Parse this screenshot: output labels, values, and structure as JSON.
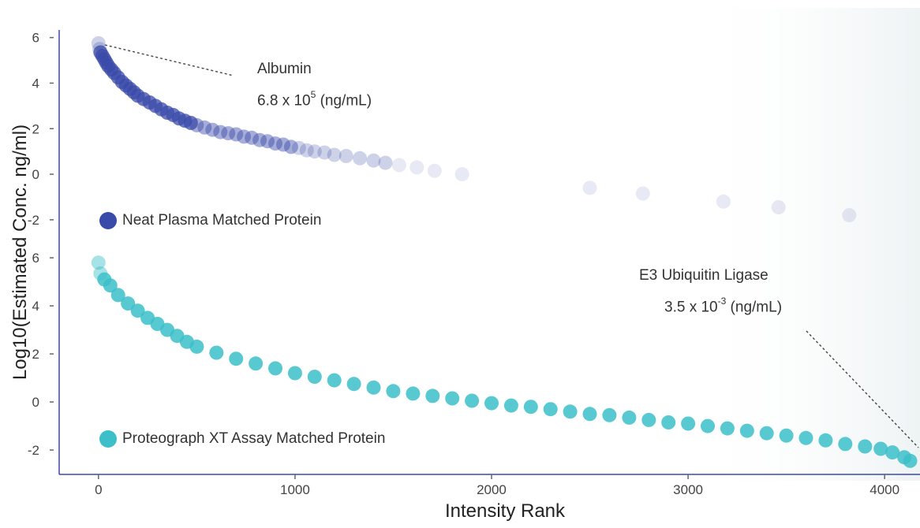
{
  "chart_data": {
    "type": "scatter",
    "xlabel": "Intensity Rank",
    "ylabel": "Log10(Estimated Conc. ng/ml)",
    "x_ticks": [
      "0",
      "1000",
      "2000",
      "3000",
      "4000"
    ],
    "y_ticks": [
      "6",
      "4",
      "2",
      "0",
      "-2"
    ],
    "xlim": [
      -200,
      4180
    ],
    "panels": [
      {
        "ylim": [
          -2.8,
          6.3
        ],
        "legend": "Neat Plasma Matched Protein",
        "color": "#3a4aa8",
        "series": [
          {
            "name": "Neat Plasma Matched Protein",
            "points": [
              [
                0,
                5.75
              ],
              [
                5,
                5.5
              ],
              [
                10,
                5.35
              ],
              [
                20,
                5.2
              ],
              [
                30,
                5.05
              ],
              [
                40,
                4.9
              ],
              [
                50,
                4.75
              ],
              [
                65,
                4.6
              ],
              [
                80,
                4.45
              ],
              [
                100,
                4.25
              ],
              [
                120,
                4.05
              ],
              [
                140,
                3.9
              ],
              [
                160,
                3.75
              ],
              [
                180,
                3.6
              ],
              [
                200,
                3.45
              ],
              [
                230,
                3.3
              ],
              [
                260,
                3.15
              ],
              [
                290,
                3.0
              ],
              [
                320,
                2.85
              ],
              [
                350,
                2.7
              ],
              [
                380,
                2.6
              ],
              [
                410,
                2.45
              ],
              [
                440,
                2.35
              ],
              [
                470,
                2.25
              ],
              [
                500,
                2.15
              ],
              [
                540,
                2.05
              ],
              [
                580,
                1.95
              ],
              [
                620,
                1.85
              ],
              [
                660,
                1.8
              ],
              [
                700,
                1.75
              ],
              [
                740,
                1.65
              ],
              [
                780,
                1.6
              ],
              [
                820,
                1.5
              ],
              [
                860,
                1.45
              ],
              [
                900,
                1.35
              ],
              [
                940,
                1.3
              ],
              [
                980,
                1.2
              ],
              [
                1020,
                1.15
              ],
              [
                1060,
                1.05
              ],
              [
                1100,
                1.0
              ],
              [
                1150,
                0.95
              ],
              [
                1200,
                0.85
              ],
              [
                1260,
                0.8
              ],
              [
                1330,
                0.7
              ],
              [
                1400,
                0.6
              ],
              [
                1460,
                0.5
              ],
              [
                1530,
                0.4
              ],
              [
                1620,
                0.3
              ],
              [
                1710,
                0.15
              ],
              [
                1850,
                0.0
              ],
              [
                2500,
                -0.6
              ],
              [
                2770,
                -0.85
              ],
              [
                3180,
                -1.2
              ],
              [
                3460,
                -1.45
              ],
              [
                3820,
                -1.8
              ]
            ]
          }
        ],
        "annotation": {
          "lines": [
            "Albumin",
            "6.8 x 10",
            "5",
            " (ng/mL)"
          ],
          "point": [
            30,
            5.75
          ]
        }
      },
      {
        "ylim": [
          -2.95,
          6.3
        ],
        "legend": "Proteograph XT Assay Matched Protein",
        "color": "#3cbfc9",
        "series": [
          {
            "name": "Proteograph XT Assay Matched Protein",
            "points": [
              [
                0,
                5.8
              ],
              [
                10,
                5.35
              ],
              [
                30,
                5.1
              ],
              [
                60,
                4.85
              ],
              [
                100,
                4.45
              ],
              [
                150,
                4.1
              ],
              [
                200,
                3.8
              ],
              [
                250,
                3.5
              ],
              [
                300,
                3.25
              ],
              [
                350,
                3.0
              ],
              [
                400,
                2.75
              ],
              [
                450,
                2.5
              ],
              [
                500,
                2.3
              ],
              [
                600,
                2.05
              ],
              [
                700,
                1.8
              ],
              [
                800,
                1.6
              ],
              [
                900,
                1.4
              ],
              [
                1000,
                1.2
              ],
              [
                1100,
                1.05
              ],
              [
                1200,
                0.9
              ],
              [
                1300,
                0.75
              ],
              [
                1400,
                0.6
              ],
              [
                1500,
                0.45
              ],
              [
                1600,
                0.35
              ],
              [
                1700,
                0.25
              ],
              [
                1800,
                0.15
              ],
              [
                1900,
                0.05
              ],
              [
                2000,
                -0.05
              ],
              [
                2100,
                -0.15
              ],
              [
                2200,
                -0.2
              ],
              [
                2300,
                -0.3
              ],
              [
                2400,
                -0.4
              ],
              [
                2500,
                -0.5
              ],
              [
                2600,
                -0.55
              ],
              [
                2700,
                -0.65
              ],
              [
                2800,
                -0.75
              ],
              [
                2900,
                -0.85
              ],
              [
                3000,
                -0.9
              ],
              [
                3100,
                -1.0
              ],
              [
                3200,
                -1.1
              ],
              [
                3300,
                -1.2
              ],
              [
                3400,
                -1.3
              ],
              [
                3500,
                -1.4
              ],
              [
                3600,
                -1.5
              ],
              [
                3700,
                -1.6
              ],
              [
                3800,
                -1.75
              ],
              [
                3900,
                -1.85
              ],
              [
                3980,
                -1.95
              ],
              [
                4040,
                -2.1
              ],
              [
                4100,
                -2.3
              ],
              [
                4130,
                -2.45
              ]
            ]
          }
        ],
        "annotation": {
          "lines": [
            "E3 Ubiquitin Ligase",
            "3.5 x 10",
            "-3",
            " (ng/mL)"
          ],
          "point": [
            4110,
            -2.5
          ]
        }
      }
    ]
  },
  "text": {
    "panel1_legend": "Neat Plasma Matched Protein",
    "panel2_legend": "Proteograph XT Assay Matched Protein",
    "albumin_name": "Albumin",
    "albumin_conc_base": "6.8 x 10",
    "albumin_conc_exp": "5",
    "albumin_conc_unit": " (ng/mL)",
    "e3_name": "E3 Ubiquitin Ligase",
    "e3_conc_base": "3.5 x 10",
    "e3_conc_exp": "-3",
    "e3_conc_unit": " (ng/mL)"
  }
}
